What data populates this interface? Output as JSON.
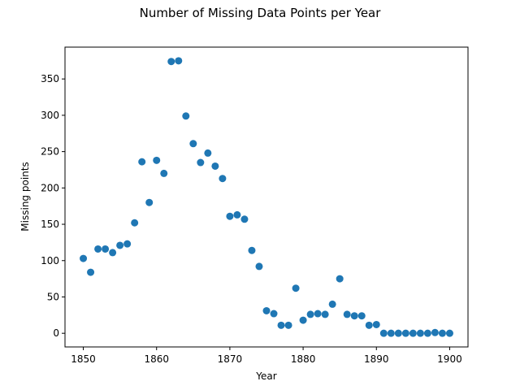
{
  "chart_data": {
    "type": "scatter",
    "title": "Number of Missing Data Points per Year",
    "xlabel": "Year",
    "ylabel": "Missing points",
    "xlim": [
      1847.5,
      1902.5
    ],
    "ylim": [
      -18.8,
      393.8
    ],
    "xticks": [
      1850,
      1860,
      1870,
      1880,
      1890,
      1900
    ],
    "yticks": [
      0,
      50,
      100,
      150,
      200,
      250,
      300,
      350
    ],
    "grid": false,
    "point_color": "#1f77b4",
    "x": [
      1850,
      1851,
      1852,
      1853,
      1854,
      1855,
      1856,
      1857,
      1858,
      1859,
      1860,
      1861,
      1862,
      1863,
      1864,
      1865,
      1866,
      1867,
      1868,
      1869,
      1870,
      1871,
      1872,
      1873,
      1874,
      1875,
      1876,
      1877,
      1878,
      1879,
      1880,
      1881,
      1882,
      1883,
      1884,
      1885,
      1886,
      1887,
      1888,
      1889,
      1890,
      1891,
      1892,
      1893,
      1894,
      1895,
      1896,
      1897,
      1898,
      1899,
      1900
    ],
    "y": [
      103,
      84,
      116,
      116,
      111,
      121,
      123,
      152,
      236,
      180,
      238,
      220,
      374,
      375,
      299,
      261,
      235,
      248,
      230,
      213,
      161,
      163,
      157,
      114,
      92,
      31,
      27,
      11,
      11,
      62,
      18,
      26,
      27,
      26,
      40,
      75,
      26,
      24,
      24,
      11,
      12,
      0,
      0,
      0,
      0,
      0,
      0,
      0,
      1,
      0,
      0
    ]
  }
}
